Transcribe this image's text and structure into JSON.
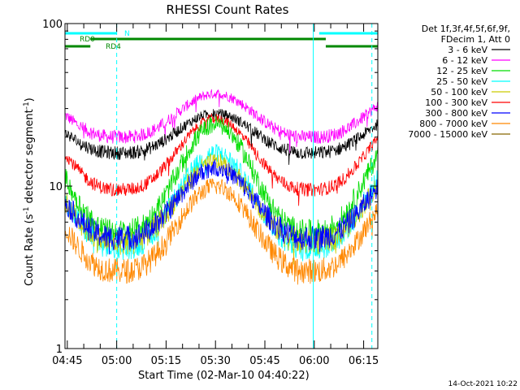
{
  "chart_data": {
    "type": "line",
    "title": "RHESSI Count Rates",
    "xlabel": "Start Time (02-Mar-10 04:40:22)",
    "ylabel_main": "Count Rate (s",
    "ylabel_exp1": "-1",
    "ylabel_mid": " detector segment",
    "ylabel_exp2": "-1",
    "ylabel_end": ")",
    "y_scale": "log",
    "ylim": [
      1,
      100
    ],
    "y_ticks": [
      {
        "value": 1,
        "label": "1"
      },
      {
        "value": 10,
        "label": "10"
      },
      {
        "value": 100,
        "label": "100"
      }
    ],
    "x_range_minutes": [
      4.3,
      99.3
    ],
    "x_ticks": [
      {
        "minute": 5,
        "label": "04:45"
      },
      {
        "minute": 20,
        "label": "05:00"
      },
      {
        "minute": 35,
        "label": "05:15"
      },
      {
        "minute": 50,
        "label": "05:30"
      },
      {
        "minute": 65,
        "label": "05:45"
      },
      {
        "minute": 80,
        "label": "06:00"
      },
      {
        "minute": 95,
        "label": "06:15"
      }
    ],
    "legend_header": [
      "Det 1f,3f,4f,5f,6f,9f,",
      "FDecim 1, Att 0"
    ],
    "legend_position": "right",
    "series": [
      {
        "name": "3 - 6 keV",
        "color": "#000000",
        "base": 16,
        "peak": 28
      },
      {
        "name": "6 - 12 keV",
        "color": "#ff00ff",
        "base": 20,
        "peak": 37
      },
      {
        "name": "12 - 25 keV",
        "color": "#00dd00",
        "base": 5.2,
        "peak": 24
      },
      {
        "name": "25 - 50 keV",
        "color": "#00ffff",
        "base": 4.2,
        "peak": 16
      },
      {
        "name": "50 - 100 keV",
        "color": "#cccc00",
        "base": 4.5,
        "peak": 14
      },
      {
        "name": "100 - 300 keV",
        "color": "#ff0000",
        "base": 9.5,
        "peak": 26
      },
      {
        "name": "300 - 800 keV",
        "color": "#0000ff",
        "base": 4.8,
        "peak": 13
      },
      {
        "name": "800 - 7000 keV",
        "color": "#ff8800",
        "base": 3.0,
        "peak": 10
      },
      {
        "name": "7000 - 15000 keV",
        "color": "#886600",
        "base": null,
        "peak": null
      }
    ],
    "segments": {
      "N": {
        "label": "N",
        "color": "#00ffff",
        "ranges": [
          [
            4.3,
            20
          ],
          [
            81.5,
            99.3
          ]
        ]
      },
      "RD0": {
        "label": "RD0",
        "color": "#008800",
        "ranges": [
          [
            12,
            83.5
          ]
        ]
      },
      "RD4": {
        "label": "RD4",
        "color": "#008800",
        "ranges": [
          [
            4.3,
            12
          ],
          [
            83.5,
            99.3
          ]
        ]
      }
    },
    "vertical_markers": [
      {
        "minute": 4.3,
        "style": "solid",
        "color": "#00ffff"
      },
      {
        "minute": 20,
        "style": "dashed",
        "color": "#00ffff"
      },
      {
        "minute": 79.7,
        "style": "solid",
        "color": "#00ffff"
      },
      {
        "minute": 97.5,
        "style": "dashed",
        "color": "#00ffff"
      }
    ]
  },
  "footer": {
    "timestamp": "14-Oct-2021 10:22"
  }
}
